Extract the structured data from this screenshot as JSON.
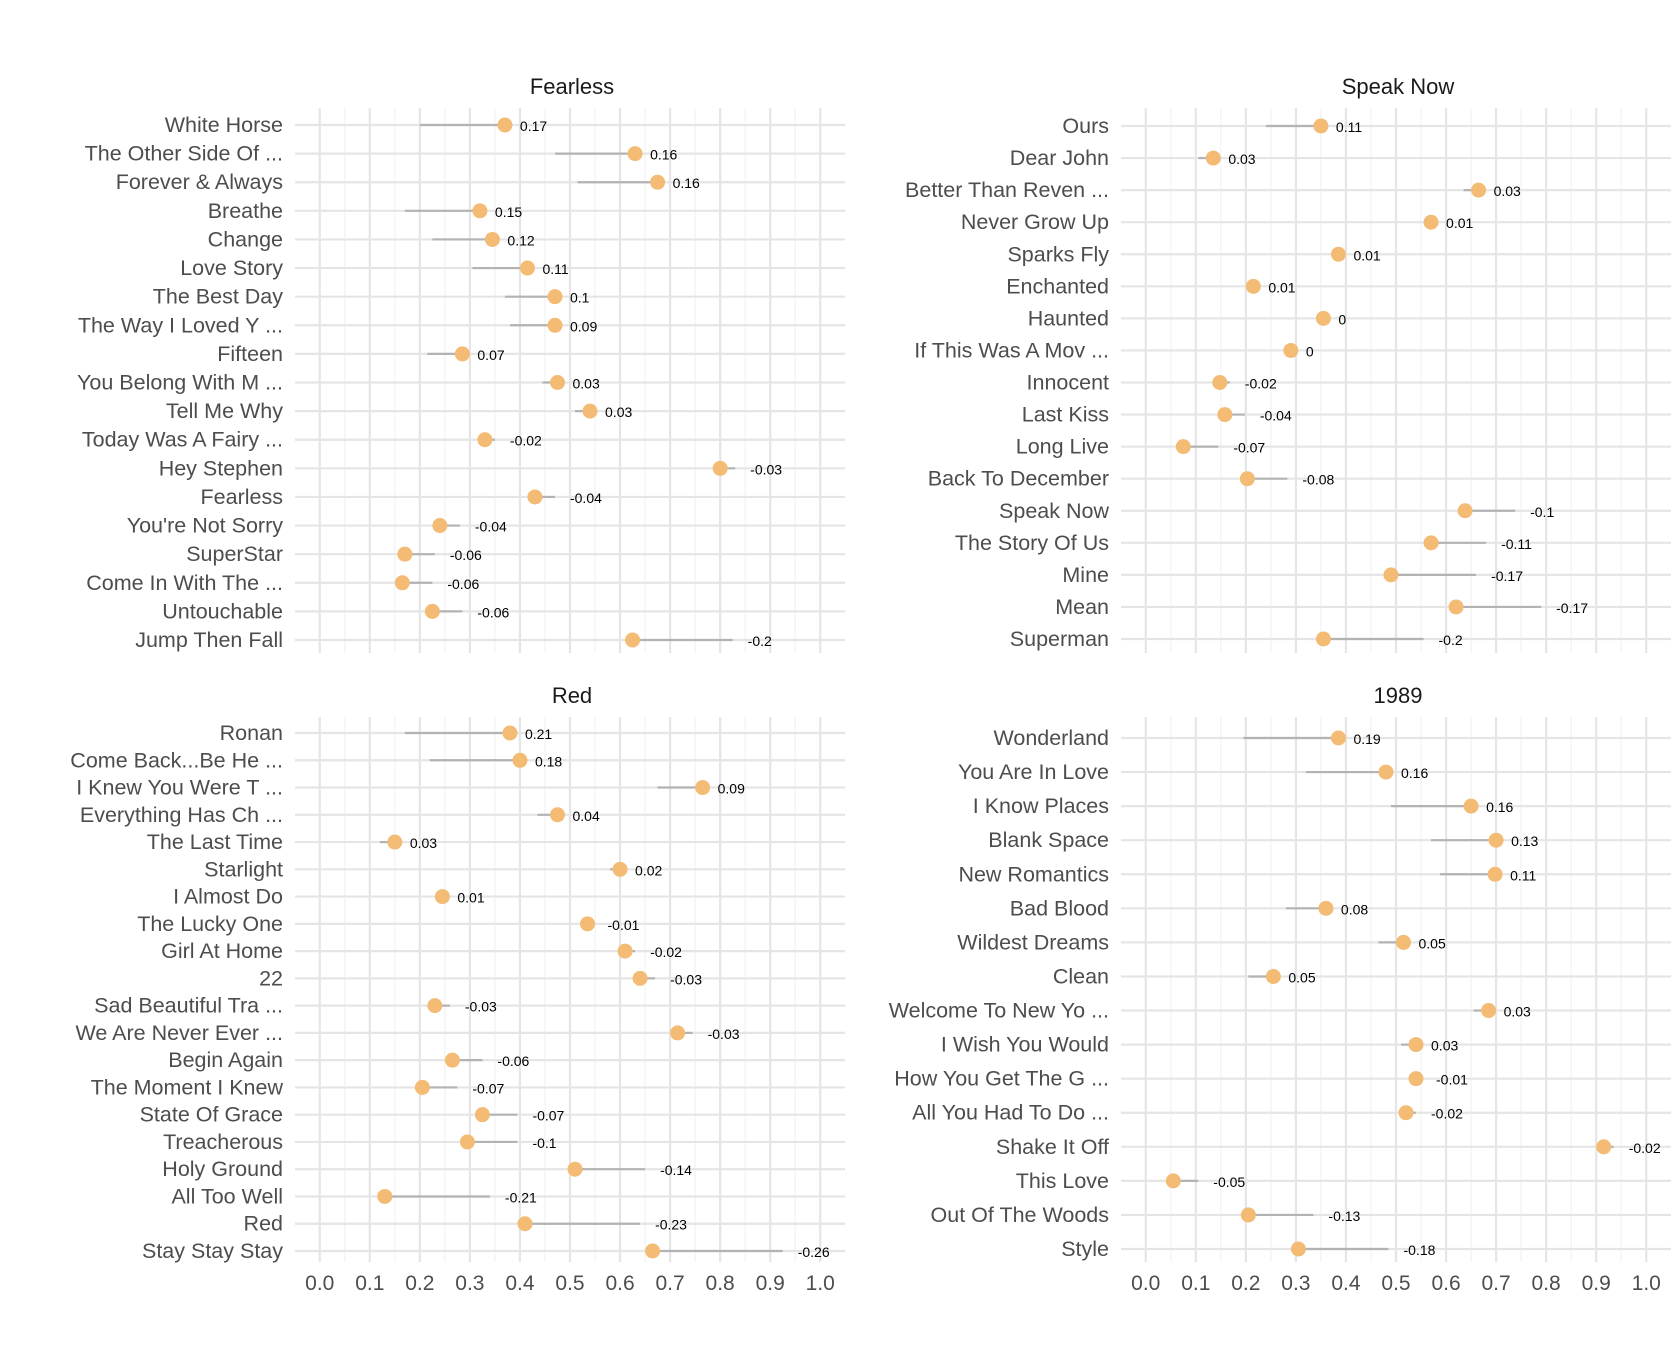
{
  "colors": {
    "point": "#F3BB73",
    "segment": "#B3B3B3",
    "grid_major": "#E5E5E5",
    "grid_minor": "#F2F2F2"
  },
  "chart_data": [
    {
      "type": "dumbbell",
      "title": "Fearless",
      "xlim": [
        0,
        1
      ],
      "x_ticks": [
        "0.0",
        "0.1",
        "0.2",
        "0.3",
        "0.4",
        "0.5",
        "0.6",
        "0.7",
        "0.8",
        "0.9",
        "1.0"
      ],
      "x_ticks_shown": false,
      "songs": [
        {
          "name": "White Horse",
          "value": 0.37,
          "delta": 0.17,
          "label": "0.17"
        },
        {
          "name": "The Other Side Of ...",
          "value": 0.63,
          "delta": 0.16,
          "label": "0.16"
        },
        {
          "name": "Forever & Always",
          "value": 0.675,
          "delta": 0.16,
          "label": "0.16"
        },
        {
          "name": "Breathe",
          "value": 0.32,
          "delta": 0.15,
          "label": "0.15"
        },
        {
          "name": "Change",
          "value": 0.345,
          "delta": 0.12,
          "label": "0.12"
        },
        {
          "name": "Love Story",
          "value": 0.415,
          "delta": 0.11,
          "label": "0.11"
        },
        {
          "name": "The Best Day",
          "value": 0.47,
          "delta": 0.1,
          "label": "0.1"
        },
        {
          "name": "The Way I Loved Y ...",
          "value": 0.47,
          "delta": 0.09,
          "label": "0.09"
        },
        {
          "name": "Fifteen",
          "value": 0.285,
          "delta": 0.07,
          "label": "0.07"
        },
        {
          "name": "You Belong With M ...",
          "value": 0.475,
          "delta": 0.03,
          "label": "0.03"
        },
        {
          "name": "Tell Me Why",
          "value": 0.54,
          "delta": 0.03,
          "label": "0.03"
        },
        {
          "name": "Today Was A Fairy ...",
          "value": 0.33,
          "delta": -0.02,
          "label": "-0.02"
        },
        {
          "name": "Hey Stephen",
          "value": 0.8,
          "delta": -0.03,
          "label": "-0.03"
        },
        {
          "name": "Fearless",
          "value": 0.43,
          "delta": -0.04,
          "label": "-0.04"
        },
        {
          "name": "You're Not Sorry",
          "value": 0.24,
          "delta": -0.04,
          "label": "-0.04"
        },
        {
          "name": "SuperStar",
          "value": 0.17,
          "delta": -0.06,
          "label": "-0.06"
        },
        {
          "name": "Come In With The  ...",
          "value": 0.165,
          "delta": -0.06,
          "label": "-0.06"
        },
        {
          "name": "Untouchable",
          "value": 0.225,
          "delta": -0.06,
          "label": "-0.06"
        },
        {
          "name": "Jump Then Fall",
          "value": 0.625,
          "delta": -0.2,
          "label": "-0.2"
        }
      ]
    },
    {
      "type": "dumbbell",
      "title": "Speak Now",
      "xlim": [
        0,
        1
      ],
      "x_ticks": [
        "0.0",
        "0.1",
        "0.2",
        "0.3",
        "0.4",
        "0.5",
        "0.6",
        "0.7",
        "0.8",
        "0.9",
        "1.0"
      ],
      "x_ticks_shown": false,
      "songs": [
        {
          "name": "Ours",
          "value": 0.35,
          "delta": 0.11,
          "label": "0.11"
        },
        {
          "name": "Dear John",
          "value": 0.135,
          "delta": 0.03,
          "label": "0.03"
        },
        {
          "name": "Better Than Reven ...",
          "value": 0.665,
          "delta": 0.03,
          "label": "0.03"
        },
        {
          "name": "Never Grow Up",
          "value": 0.57,
          "delta": 0.01,
          "label": "0.01"
        },
        {
          "name": "Sparks Fly",
          "value": 0.385,
          "delta": 0.01,
          "label": "0.01"
        },
        {
          "name": "Enchanted",
          "value": 0.215,
          "delta": 0.01,
          "label": "0.01"
        },
        {
          "name": "Haunted",
          "value": 0.355,
          "delta": 0,
          "label": "0"
        },
        {
          "name": "If This Was A Mov ...",
          "value": 0.29,
          "delta": 0,
          "label": "0"
        },
        {
          "name": "Innocent",
          "value": 0.148,
          "delta": -0.02,
          "label": "-0.02"
        },
        {
          "name": "Last Kiss",
          "value": 0.158,
          "delta": -0.04,
          "label": "-0.04"
        },
        {
          "name": "Long Live",
          "value": 0.075,
          "delta": -0.07,
          "label": "-0.07"
        },
        {
          "name": "Back To December",
          "value": 0.203,
          "delta": -0.08,
          "label": "-0.08"
        },
        {
          "name": "Speak Now",
          "value": 0.638,
          "delta": -0.1,
          "label": "-0.1"
        },
        {
          "name": "The Story Of Us",
          "value": 0.57,
          "delta": -0.11,
          "label": "-0.11"
        },
        {
          "name": "Mine",
          "value": 0.49,
          "delta": -0.17,
          "label": "-0.17"
        },
        {
          "name": "Mean",
          "value": 0.62,
          "delta": -0.17,
          "label": "-0.17"
        },
        {
          "name": "Superman",
          "value": 0.355,
          "delta": -0.2,
          "label": "-0.2"
        }
      ]
    },
    {
      "type": "dumbbell",
      "title": "Red",
      "xlim": [
        0,
        1
      ],
      "x_ticks": [
        "0.0",
        "0.1",
        "0.2",
        "0.3",
        "0.4",
        "0.5",
        "0.6",
        "0.7",
        "0.8",
        "0.9",
        "1.0"
      ],
      "x_ticks_shown": true,
      "songs": [
        {
          "name": "Ronan",
          "value": 0.38,
          "delta": 0.21,
          "label": "0.21"
        },
        {
          "name": "Come Back...Be He ...",
          "value": 0.4,
          "delta": 0.18,
          "label": "0.18"
        },
        {
          "name": "I Knew You Were T ...",
          "value": 0.765,
          "delta": 0.09,
          "label": "0.09"
        },
        {
          "name": "Everything Has Ch ...",
          "value": 0.475,
          "delta": 0.04,
          "label": "0.04"
        },
        {
          "name": "The Last Time",
          "value": 0.15,
          "delta": 0.03,
          "label": "0.03"
        },
        {
          "name": "Starlight",
          "value": 0.6,
          "delta": 0.02,
          "label": "0.02"
        },
        {
          "name": "I Almost Do",
          "value": 0.245,
          "delta": 0.01,
          "label": "0.01"
        },
        {
          "name": "The Lucky One",
          "value": 0.535,
          "delta": -0.01,
          "label": "-0.01"
        },
        {
          "name": "Girl At Home",
          "value": 0.61,
          "delta": -0.02,
          "label": "-0.02"
        },
        {
          "name": "22",
          "value": 0.64,
          "delta": -0.03,
          "label": "-0.03"
        },
        {
          "name": "Sad Beautiful Tra ...",
          "value": 0.23,
          "delta": -0.03,
          "label": "-0.03"
        },
        {
          "name": "We Are Never Ever ...",
          "value": 0.715,
          "delta": -0.03,
          "label": "-0.03"
        },
        {
          "name": "Begin Again",
          "value": 0.265,
          "delta": -0.06,
          "label": "-0.06"
        },
        {
          "name": "The Moment I Knew",
          "value": 0.205,
          "delta": -0.07,
          "label": "-0.07"
        },
        {
          "name": "State Of Grace",
          "value": 0.325,
          "delta": -0.07,
          "label": "-0.07"
        },
        {
          "name": "Treacherous",
          "value": 0.295,
          "delta": -0.1,
          "label": "-0.1"
        },
        {
          "name": "Holy Ground",
          "value": 0.51,
          "delta": -0.14,
          "label": "-0.14"
        },
        {
          "name": "All Too Well",
          "value": 0.13,
          "delta": -0.21,
          "label": "-0.21"
        },
        {
          "name": "Red",
          "value": 0.41,
          "delta": -0.23,
          "label": "-0.23"
        },
        {
          "name": "Stay Stay Stay",
          "value": 0.665,
          "delta": -0.26,
          "label": "-0.26"
        }
      ]
    },
    {
      "type": "dumbbell",
      "title": "1989",
      "xlim": [
        0,
        1
      ],
      "x_ticks": [
        "0.0",
        "0.1",
        "0.2",
        "0.3",
        "0.4",
        "0.5",
        "0.6",
        "0.7",
        "0.8",
        "0.9",
        "1.0"
      ],
      "x_ticks_shown": true,
      "songs": [
        {
          "name": "Wonderland",
          "value": 0.385,
          "delta": 0.19,
          "label": "0.19"
        },
        {
          "name": "You Are In Love",
          "value": 0.48,
          "delta": 0.16,
          "label": "0.16"
        },
        {
          "name": "I Know Places",
          "value": 0.65,
          "delta": 0.16,
          "label": "0.16"
        },
        {
          "name": "Blank Space",
          "value": 0.7,
          "delta": 0.13,
          "label": "0.13"
        },
        {
          "name": "New Romantics",
          "value": 0.698,
          "delta": 0.11,
          "label": "0.11"
        },
        {
          "name": "Bad Blood",
          "value": 0.36,
          "delta": 0.08,
          "label": "0.08"
        },
        {
          "name": "Wildest Dreams",
          "value": 0.515,
          "delta": 0.05,
          "label": "0.05"
        },
        {
          "name": "Clean",
          "value": 0.255,
          "delta": 0.05,
          "label": "0.05"
        },
        {
          "name": "Welcome To New Yo ...",
          "value": 0.685,
          "delta": 0.03,
          "label": "0.03"
        },
        {
          "name": "I Wish You Would",
          "value": 0.54,
          "delta": 0.03,
          "label": "0.03"
        },
        {
          "name": "How You Get The G ...",
          "value": 0.54,
          "delta": -0.01,
          "label": "-0.01"
        },
        {
          "name": "All You Had To Do ...",
          "value": 0.52,
          "delta": -0.02,
          "label": "-0.02"
        },
        {
          "name": "Shake It Off",
          "value": 0.915,
          "delta": -0.02,
          "label": "-0.02"
        },
        {
          "name": "This Love",
          "value": 0.055,
          "delta": -0.05,
          "label": "-0.05"
        },
        {
          "name": "Out Of The Woods",
          "value": 0.205,
          "delta": -0.13,
          "label": "-0.13"
        },
        {
          "name": "Style",
          "value": 0.305,
          "delta": -0.18,
          "label": "-0.18"
        }
      ]
    }
  ]
}
